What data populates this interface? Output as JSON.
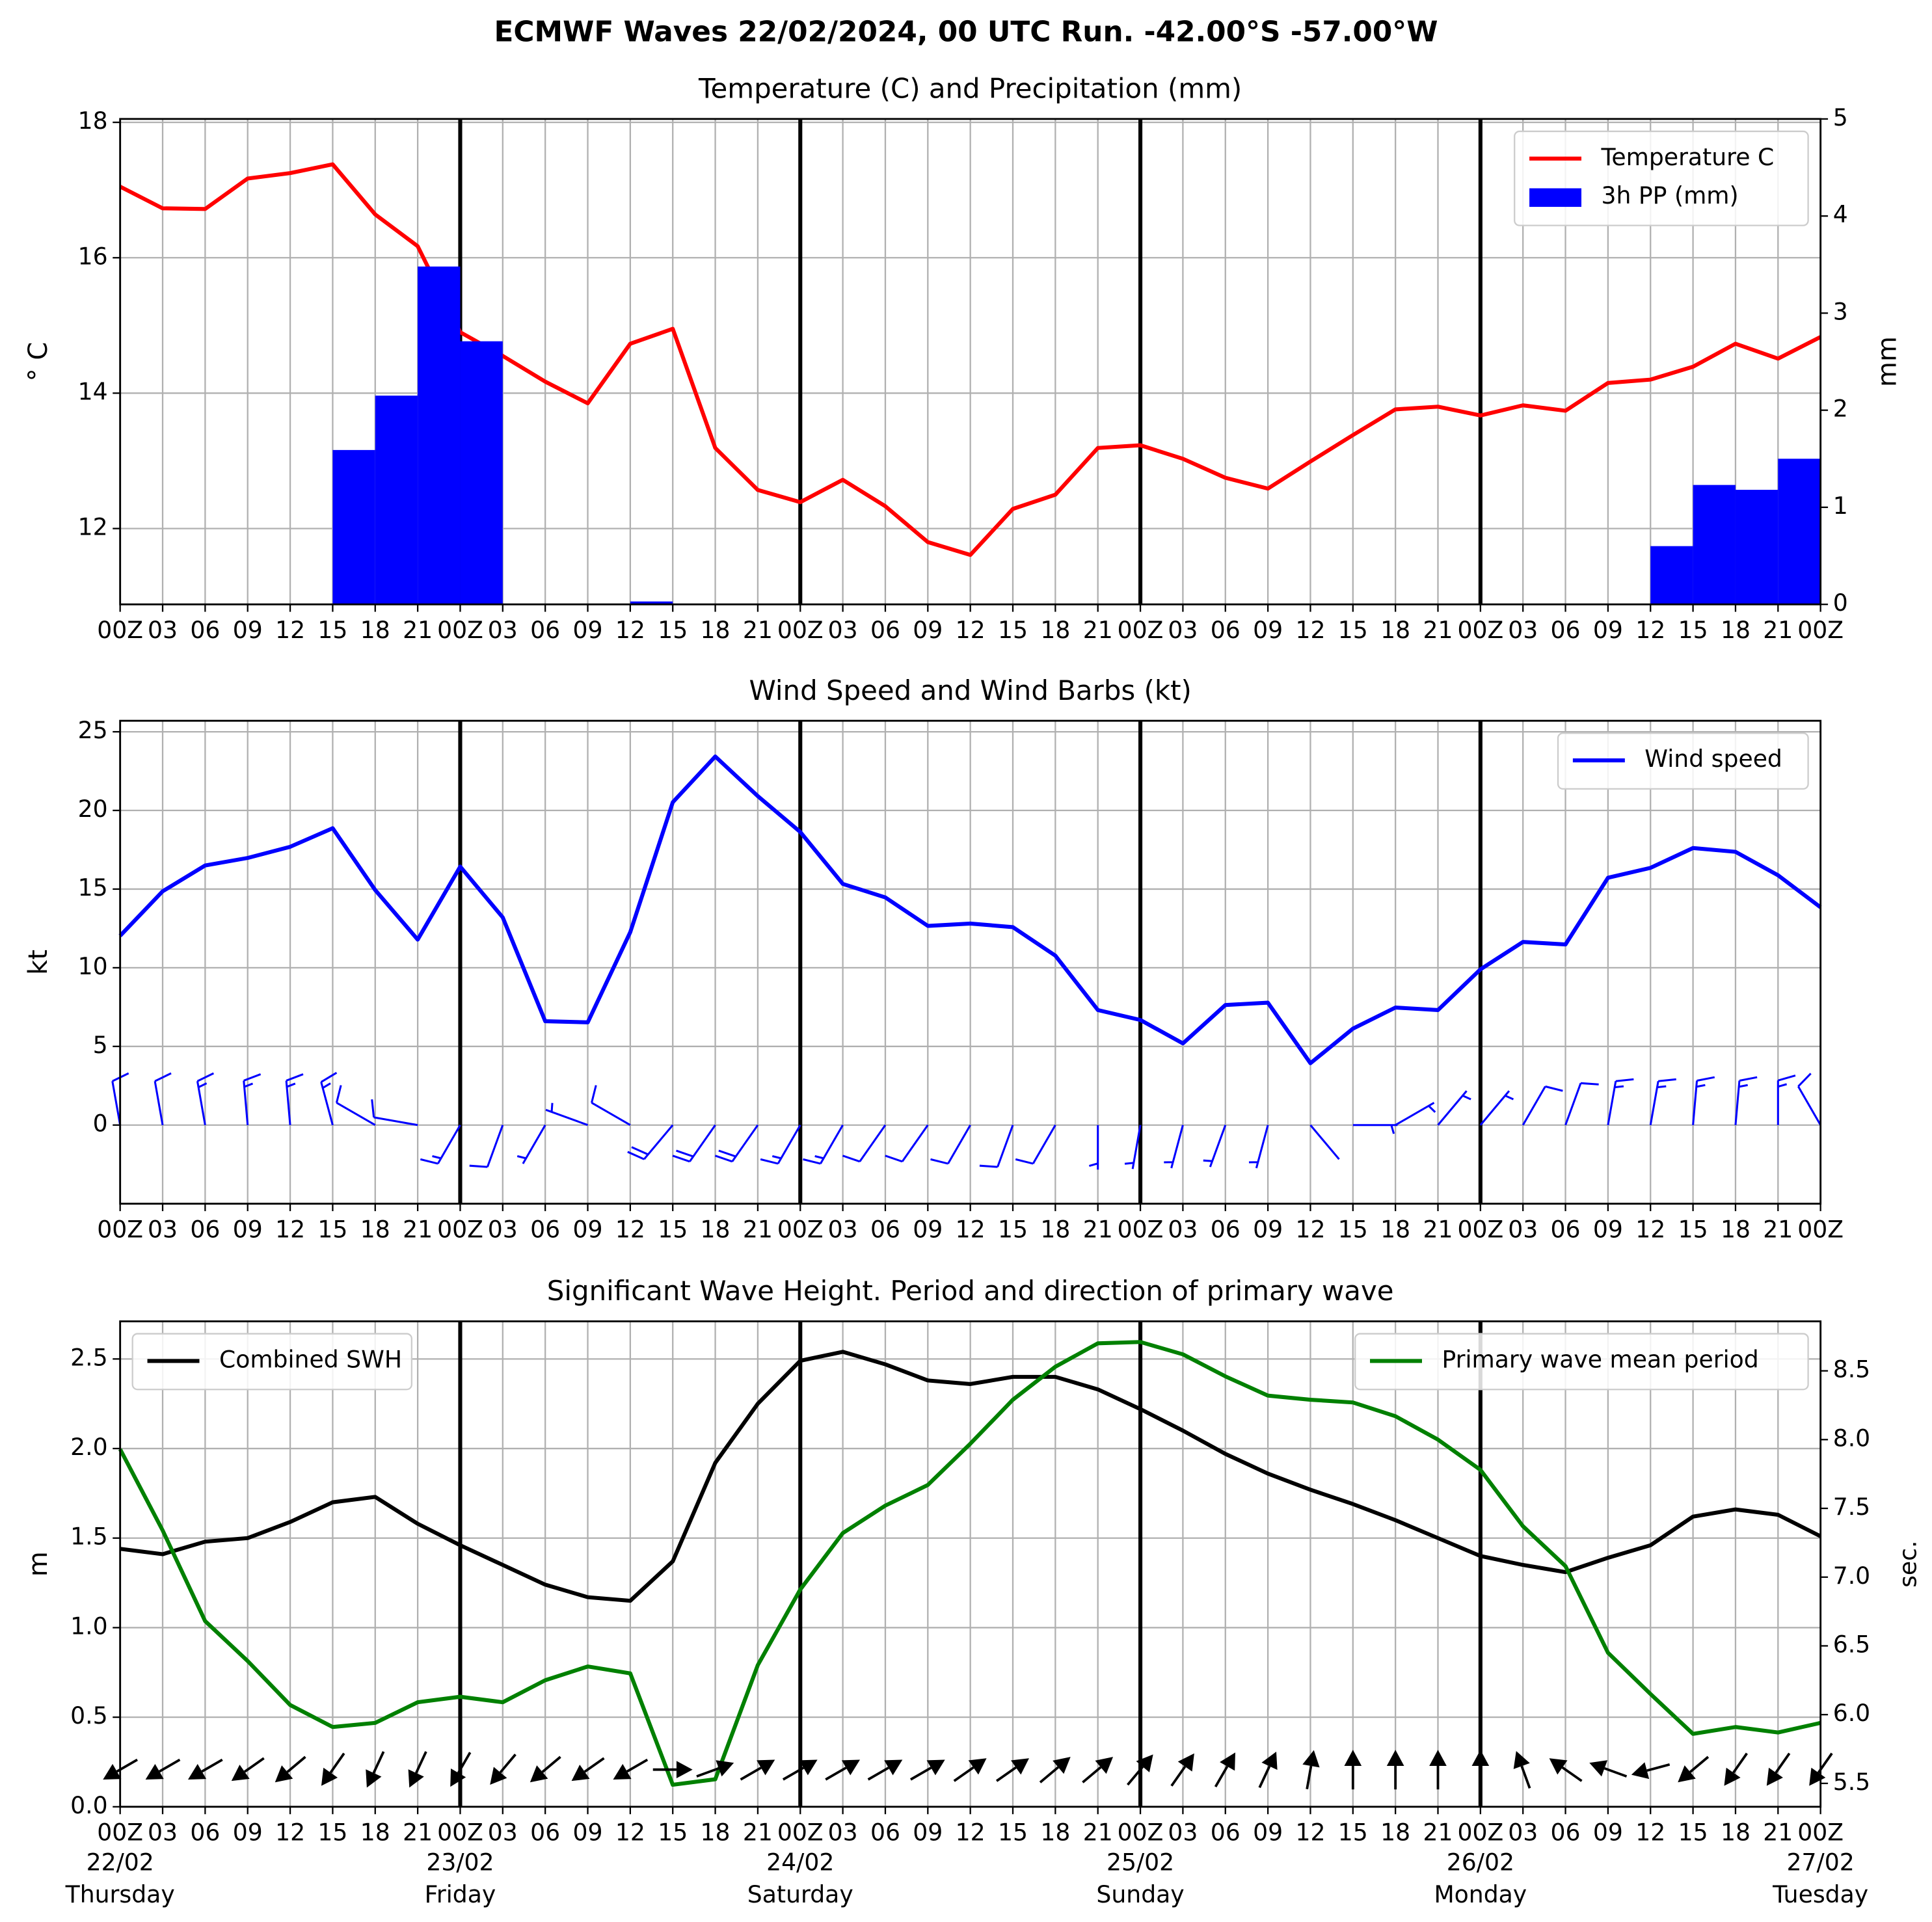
{
  "title": "ECMWF Waves 22/02/2024, 00 UTC Run. -42.00°S -57.00°W",
  "chart_data": [
    {
      "type": "line",
      "title": "Temperature (C) and Precipitation (mm)",
      "ylabel": "° C",
      "y2label": "mm",
      "categories": [
        "00Z",
        "03",
        "06",
        "09",
        "12",
        "15",
        "18",
        "21",
        "00Z",
        "03",
        "06",
        "09",
        "12",
        "15",
        "18",
        "21",
        "00Z",
        "03",
        "06",
        "09",
        "12",
        "15",
        "18",
        "21",
        "00Z",
        "03",
        "06",
        "09",
        "12",
        "15",
        "18",
        "21",
        "00Z",
        "03",
        "06",
        "09",
        "12",
        "15",
        "18",
        "21",
        "00Z"
      ],
      "ylim": [
        10.88,
        18.05
      ],
      "yticks": [
        12,
        14,
        16,
        18
      ],
      "y2lim": [
        0,
        5
      ],
      "y2ticks": [
        0,
        1,
        2,
        3,
        4,
        5
      ],
      "grid": true,
      "series": [
        {
          "name": "Temperature C",
          "color": "#ff0000",
          "type": "line",
          "legend": "upper right",
          "values": [
            17.05,
            16.73,
            16.72,
            17.17,
            17.25,
            17.38,
            16.64,
            16.17,
            14.9,
            14.55,
            14.17,
            13.85,
            14.73,
            14.95,
            13.19,
            12.57,
            12.39,
            12.72,
            12.33,
            11.8,
            11.61,
            12.29,
            12.5,
            13.19,
            13.23,
            13.03,
            12.75,
            12.59,
            12.99,
            13.38,
            13.76,
            13.8,
            13.67,
            13.82,
            13.74,
            14.15,
            14.2,
            14.39,
            14.73,
            14.51,
            14.83
          ]
        },
        {
          "name": "3h PP (mm)",
          "color": "#0000ff",
          "type": "bar",
          "axis": "y2",
          "legend": "upper right",
          "values": [
            0,
            0,
            0,
            0,
            0,
            0,
            1.59,
            2.15,
            3.48,
            2.71,
            0,
            0,
            0,
            0.03,
            0,
            0,
            0,
            0,
            0,
            0,
            0,
            0,
            0,
            0,
            0,
            0,
            0,
            0,
            0,
            0,
            0,
            0,
            0,
            0,
            0,
            0,
            0,
            0.6,
            1.23,
            1.18,
            1.5
          ]
        }
      ]
    },
    {
      "type": "line",
      "title": "Wind Speed and Wind Barbs (kt)",
      "ylabel": "kt",
      "categories": [
        "00Z",
        "03",
        "06",
        "09",
        "12",
        "15",
        "18",
        "21",
        "00Z",
        "03",
        "06",
        "09",
        "12",
        "15",
        "18",
        "21",
        "00Z",
        "03",
        "06",
        "09",
        "12",
        "15",
        "18",
        "21",
        "00Z",
        "03",
        "06",
        "09",
        "12",
        "15",
        "18",
        "21",
        "00Z",
        "03",
        "06",
        "09",
        "12",
        "15",
        "18",
        "21",
        "00Z"
      ],
      "ylim": [
        -5,
        25.7
      ],
      "yticks": [
        0,
        5,
        10,
        15,
        20,
        25
      ],
      "grid": true,
      "series": [
        {
          "name": "Wind speed",
          "color": "#0000ff",
          "type": "line",
          "legend": "upper right",
          "values": [
            12.03,
            14.86,
            16.5,
            16.98,
            17.69,
            18.87,
            14.94,
            11.79,
            16.43,
            13.2,
            6.6,
            6.53,
            12.26,
            20.52,
            23.43,
            20.91,
            18.63,
            15.33,
            14.47,
            12.66,
            12.81,
            12.58,
            10.77,
            7.31,
            6.68,
            5.19,
            7.63,
            7.78,
            3.93,
            6.13,
            7.47,
            7.31,
            9.9,
            11.64,
            11.48,
            15.72,
            16.35,
            17.61,
            17.37,
            15.88,
            13.84
          ]
        }
      ],
      "barbs": {
        "color": "#0000ff",
        "directions": [
          350,
          350,
          350,
          355,
          355,
          345,
          300,
          280,
          210,
          200,
          210,
          290,
          300,
          220,
          215,
          215,
          210,
          210,
          215,
          215,
          210,
          200,
          210,
          180,
          190,
          195,
          200,
          195,
          140,
          90,
          60,
          40,
          40,
          30,
          20,
          10,
          10,
          5,
          5,
          0,
          330
        ]
      }
    },
    {
      "type": "line",
      "title": "Significant Wave Height. Period and direction of primary wave",
      "ylabel": "m",
      "y2label": "sec.",
      "y2label_color": "#008000",
      "categories": [
        "00Z",
        "03",
        "06",
        "09",
        "12",
        "15",
        "18",
        "21",
        "00Z",
        "03",
        "06",
        "09",
        "12",
        "15",
        "18",
        "21",
        "00Z",
        "03",
        "06",
        "09",
        "12",
        "15",
        "18",
        "21",
        "00Z",
        "03",
        "06",
        "09",
        "12",
        "15",
        "18",
        "21",
        "00Z",
        "03",
        "06",
        "09",
        "12",
        "15",
        "18",
        "21",
        "00Z"
      ],
      "dates": [
        "22/02",
        "23/02",
        "24/02",
        "25/02",
        "26/02",
        "27/02"
      ],
      "weekdays": [
        "Thursday",
        "Friday",
        "Saturday",
        "Sunday",
        "Monday",
        "Tuesday"
      ],
      "ylim": [
        0,
        2.71
      ],
      "yticks": [
        {
          "value": 0,
          "label": "0.0"
        },
        0.5,
        {
          "value": 1,
          "label": "1.0"
        },
        1.5,
        {
          "value": 2,
          "label": "2.0"
        },
        2.5
      ],
      "y2lim": [
        5.33,
        8.86
      ],
      "y2ticks": [
        5.5,
        {
          "value": 6,
          "label": "6.0"
        },
        6.5,
        {
          "value": 7,
          "label": "7.0"
        },
        7.5,
        {
          "value": 8,
          "label": "8.0"
        },
        8.5
      ],
      "grid": true,
      "series": [
        {
          "name": "Combined SWH",
          "color": "#000000",
          "type": "line",
          "legend": "upper left",
          "values": [
            1.44,
            1.41,
            1.48,
            1.5,
            1.59,
            1.7,
            1.73,
            1.58,
            1.46,
            1.35,
            1.24,
            1.17,
            1.15,
            1.37,
            1.92,
            2.25,
            2.49,
            2.54,
            2.47,
            2.38,
            2.36,
            2.4,
            2.4,
            2.33,
            2.22,
            2.1,
            1.97,
            1.86,
            1.77,
            1.69,
            1.6,
            1.5,
            1.4,
            1.35,
            1.31,
            1.39,
            1.46,
            1.62,
            1.66,
            1.63,
            1.51
          ]
        },
        {
          "name": "Primary wave mean period",
          "color": "#008000",
          "type": "line",
          "axis": "y2",
          "legend": "upper right",
          "values": [
            7.93,
            7.34,
            6.68,
            6.39,
            6.07,
            5.91,
            5.94,
            6.09,
            6.13,
            6.09,
            6.25,
            6.35,
            6.3,
            5.49,
            5.53,
            6.36,
            6.91,
            7.32,
            7.52,
            7.67,
            7.97,
            8.29,
            8.53,
            8.7,
            8.71,
            8.62,
            8.46,
            8.32,
            8.29,
            8.27,
            8.17,
            8.0,
            7.78,
            7.37,
            7.08,
            6.45,
            6.15,
            5.86,
            5.91,
            5.87,
            5.94
          ]
        }
      ],
      "arrows": {
        "color": "#000000",
        "directions": [
          240,
          240,
          240,
          235,
          230,
          215,
          205,
          205,
          210,
          220,
          230,
          235,
          240,
          90,
          70,
          60,
          60,
          60,
          60,
          60,
          55,
          55,
          50,
          50,
          40,
          35,
          30,
          25,
          10,
          0,
          0,
          0,
          0,
          340,
          305,
          290,
          255,
          230,
          215,
          215,
          215
        ]
      }
    }
  ]
}
